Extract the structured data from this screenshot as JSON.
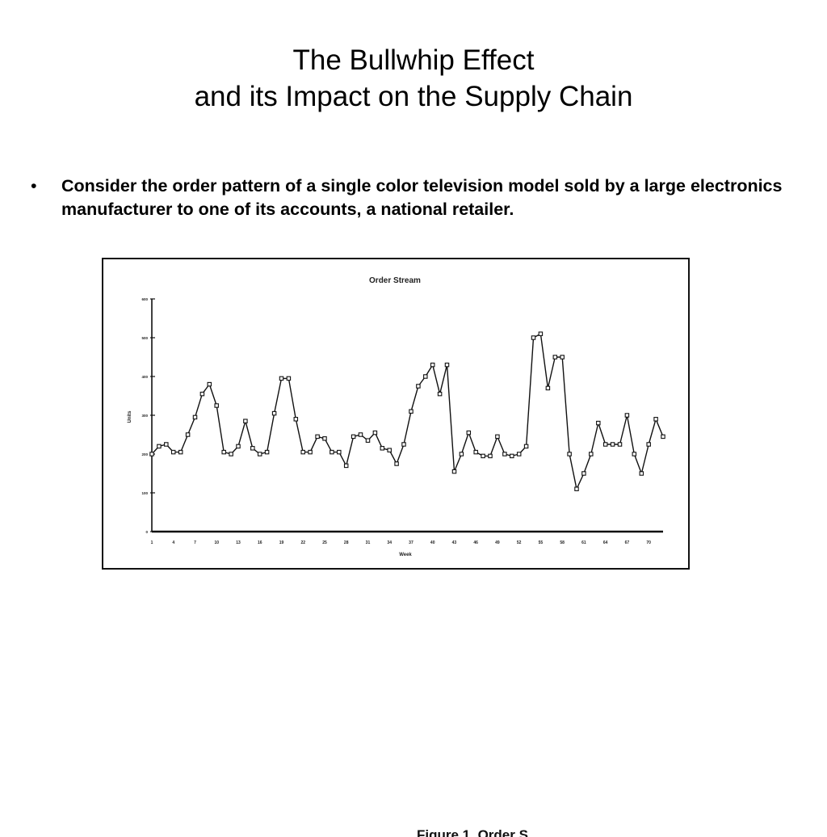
{
  "slide": {
    "title_line1": "The Bullwhip Effect",
    "title_line2": "and its Impact on the Supply Chain",
    "bullets": [
      "Consider the order pattern of a single color television model sold by a large electronics manufacturer to one of its accounts, a national retailer."
    ],
    "caption": "Figure 1. Order S"
  },
  "chart_data": {
    "type": "line",
    "title": "Order Stream",
    "xlabel": "Week",
    "ylabel": "Units",
    "xlim": [
      1,
      72
    ],
    "ylim": [
      0,
      600
    ],
    "yticks": [
      0,
      100,
      200,
      300,
      400,
      500,
      600
    ],
    "xtick_labels": [
      "1",
      "4",
      "7",
      "10",
      "13",
      "16",
      "19",
      "22",
      "25",
      "28",
      "31",
      "34",
      "37",
      "40",
      "43",
      "46",
      "49",
      "52",
      "55",
      "58",
      "61",
      "64",
      "67",
      "70"
    ],
    "grid": false,
    "series": [
      {
        "values": [
          200,
          220,
          225,
          205,
          205,
          250,
          295,
          355,
          380,
          325,
          205,
          200,
          220,
          285,
          215,
          200,
          205,
          305,
          395,
          395,
          290,
          205,
          205,
          245,
          240,
          205,
          205,
          170,
          245,
          250,
          235,
          255,
          215,
          210,
          175,
          225,
          310,
          375,
          400,
          430,
          355,
          430,
          155,
          200,
          255,
          205,
          195,
          195,
          245,
          200,
          195,
          200,
          220,
          500,
          510,
          370,
          450,
          450,
          200,
          110,
          150,
          200,
          280,
          225,
          225,
          225,
          300,
          200,
          150,
          225,
          290,
          245
        ]
      }
    ]
  }
}
